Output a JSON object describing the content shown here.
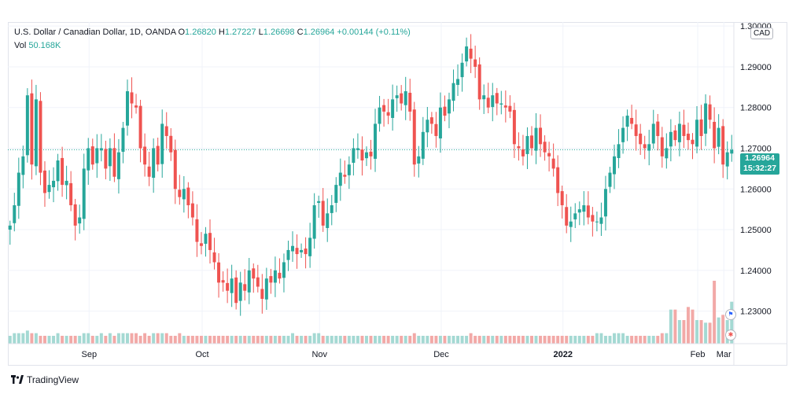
{
  "header": {
    "symbol": "U.S. Dollar / Canadian Dollar, 1D, OANDA",
    "o_label": "O",
    "o_value": "1.26820",
    "h_label": "H",
    "h_value": "1.27227",
    "l_label": "L",
    "l_value": "1.26698",
    "c_label": "C",
    "c_value": "1.26964",
    "change": "+0.00144 (+0.11%)",
    "vol_label": "Vol",
    "vol_value": "50.168K"
  },
  "currency_badge": "CAD",
  "price_tag": {
    "price": "1.26964",
    "countdown": "15:32:27"
  },
  "brand": "TradingView",
  "colors": {
    "up": "#26a69a",
    "down": "#ef5350",
    "up_vol": "#a4d9d3",
    "down_vol": "#f2a9a7"
  },
  "chart_data": {
    "type": "candlestick",
    "y_ticks": [
      "1.30000",
      "1.29000",
      "1.28000",
      "1.27000",
      "1.26000",
      "1.25000",
      "1.24000",
      "1.23000"
    ],
    "x_ticks": [
      "Sep",
      "Oct",
      "Nov",
      "Dec",
      "2022",
      "Feb",
      "Mar"
    ],
    "last_price": 1.26964,
    "closes": [
      1.251,
      1.256,
      1.264,
      1.268,
      1.283,
      1.266,
      1.282,
      1.264,
      1.259,
      1.261,
      1.262,
      1.267,
      1.261,
      1.262,
      1.256,
      1.251,
      1.253,
      1.265,
      1.27,
      1.266,
      1.27,
      1.27,
      1.265,
      1.27,
      1.263,
      1.269,
      1.275,
      1.284,
      1.281,
      1.28,
      1.27,
      1.266,
      1.263,
      1.27,
      1.266,
      1.276,
      1.273,
      1.269,
      1.26,
      1.258,
      1.26,
      1.256,
      1.253,
      1.247,
      1.246,
      1.249,
      1.245,
      1.242,
      1.237,
      1.237,
      1.235,
      1.238,
      1.232,
      1.237,
      1.235,
      1.24,
      1.238,
      1.236,
      1.233,
      1.238,
      1.237,
      1.24,
      1.238,
      1.242,
      1.245,
      1.246,
      1.244,
      1.245,
      1.244,
      1.248,
      1.256,
      1.257,
      1.251,
      1.254,
      1.256,
      1.261,
      1.264,
      1.263,
      1.266,
      1.27,
      1.27,
      1.267,
      1.269,
      1.268,
      1.276,
      1.28,
      1.279,
      1.278,
      1.282,
      1.283,
      1.281,
      1.284,
      1.279,
      1.266,
      1.268,
      1.274,
      1.277,
      1.276,
      1.273,
      1.28,
      1.278,
      1.282,
      1.286,
      1.287,
      1.291,
      1.295,
      1.292,
      1.29,
      1.282,
      1.283,
      1.28,
      1.283,
      1.281,
      1.281,
      1.28,
      1.279,
      1.271,
      1.27,
      1.268,
      1.273,
      1.27,
      1.275,
      1.271,
      1.269,
      1.268,
      1.265,
      1.259,
      1.256,
      1.251,
      1.252,
      1.254,
      1.255,
      1.256,
      1.253,
      1.252,
      1.252,
      1.253,
      1.26,
      1.264,
      1.268,
      1.271,
      1.275,
      1.278,
      1.276,
      1.273,
      1.271,
      1.27,
      1.271,
      1.276,
      1.273,
      1.268,
      1.27,
      1.274,
      1.272,
      1.276,
      1.273,
      1.272,
      1.271,
      1.277,
      1.273,
      1.281,
      1.277,
      1.27,
      1.275,
      1.266,
      1.269,
      1.2696
    ],
    "opens_note": "",
    "volumes": [
      3,
      4,
      4,
      4,
      5,
      4,
      4,
      3,
      3,
      3,
      3,
      4,
      3,
      3,
      3,
      3,
      3,
      4,
      4,
      3,
      3,
      4,
      3,
      4,
      3,
      4,
      4,
      4,
      4,
      4,
      3,
      4,
      3,
      4,
      4,
      4,
      4,
      3,
      3,
      4,
      3,
      3,
      3,
      3,
      3,
      3,
      3,
      3,
      3,
      3,
      3,
      3,
      3,
      3,
      3,
      3,
      3,
      3,
      3,
      3,
      3,
      3,
      3,
      3,
      3,
      4,
      3,
      3,
      3,
      3,
      4,
      4,
      3,
      3,
      3,
      3,
      3,
      3,
      3,
      3,
      3,
      3,
      3,
      3,
      3,
      3,
      3,
      3,
      3,
      3,
      3,
      3,
      3,
      4,
      3,
      3,
      3,
      3,
      3,
      3,
      3,
      3,
      3,
      3,
      3,
      3,
      4,
      3,
      3,
      3,
      3,
      3,
      3,
      3,
      3,
      3,
      3,
      3,
      3,
      3,
      3,
      3,
      3,
      3,
      3,
      3,
      3,
      3,
      3,
      3,
      3,
      3,
      3,
      3,
      3,
      4,
      4,
      3,
      3,
      4,
      4,
      4,
      3,
      3,
      3,
      3,
      3,
      3,
      3,
      3,
      4,
      4,
      13,
      13,
      9,
      9,
      14,
      13,
      9,
      9,
      8,
      8,
      24,
      10,
      11,
      9,
      16,
      11,
      18
    ]
  }
}
